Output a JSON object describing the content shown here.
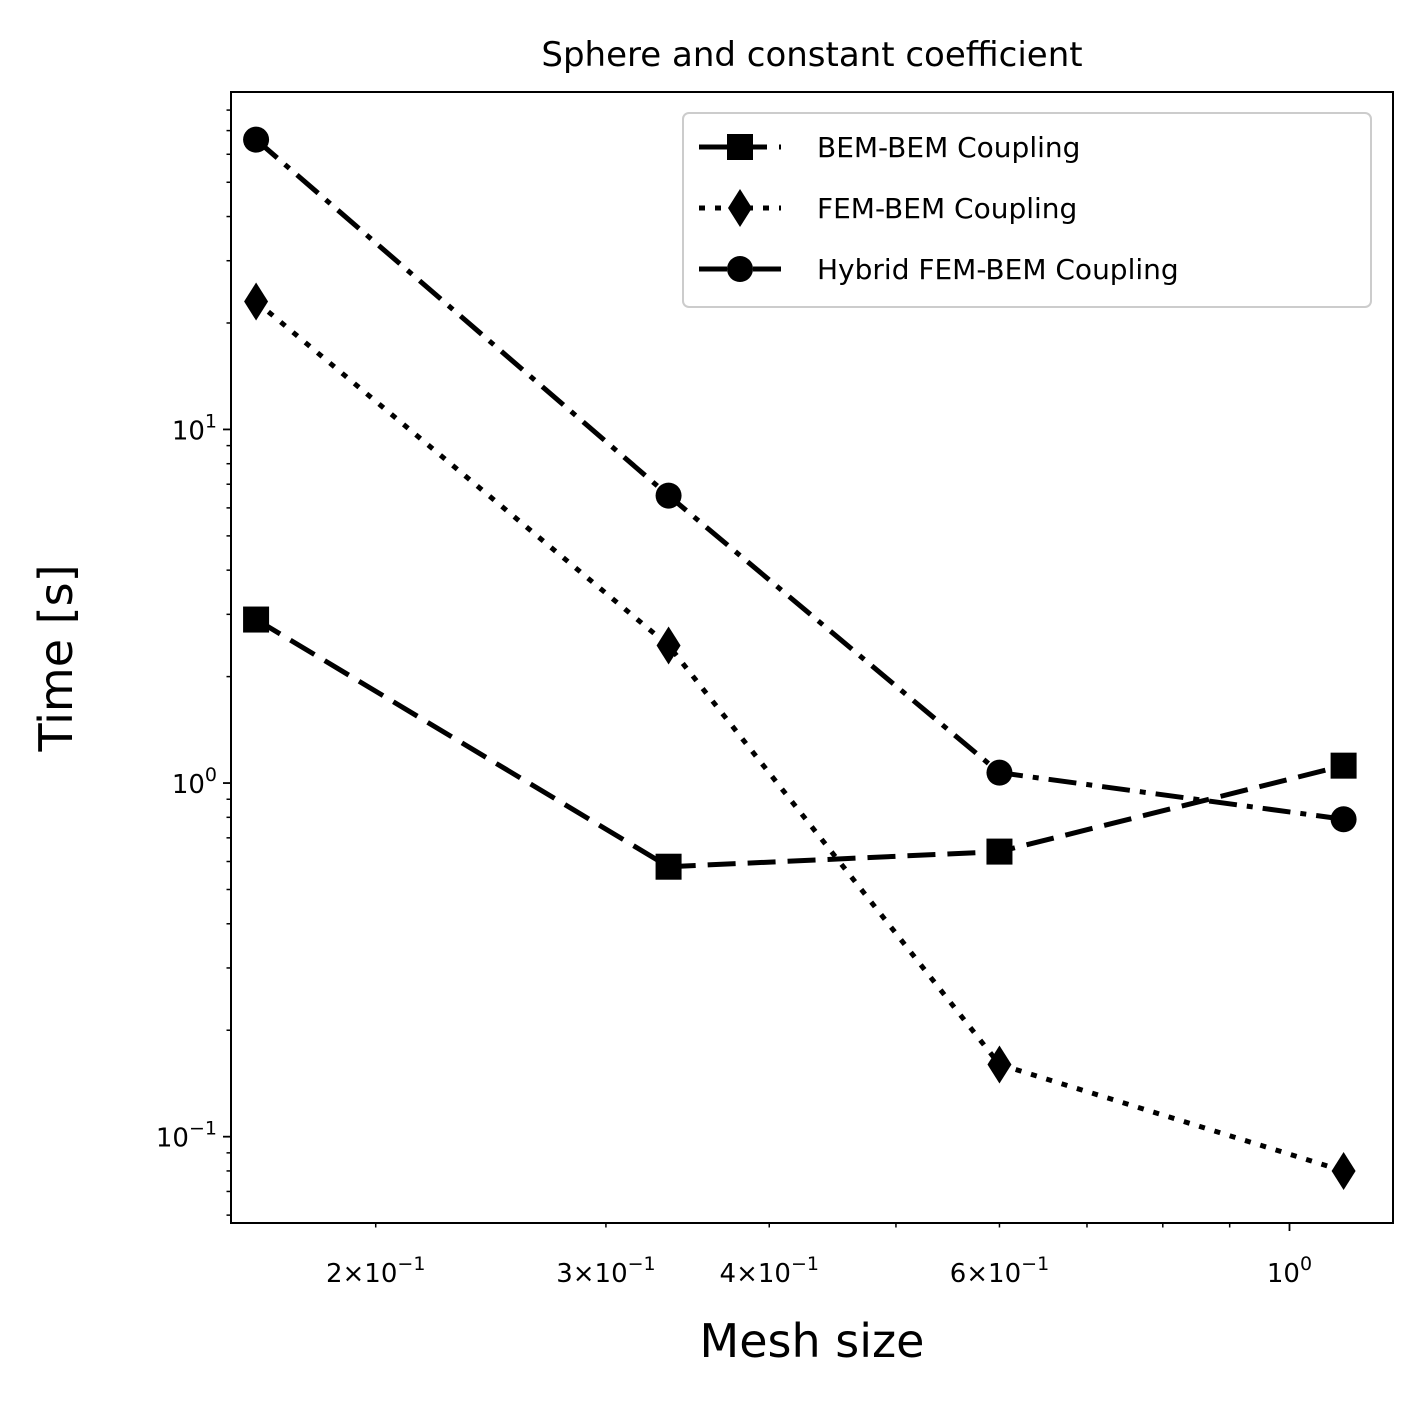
{
  "chart_data": {
    "type": "line",
    "title": "Sphere and constant coefficient",
    "xlabel": "Mesh size",
    "ylabel": "Time [s]",
    "xscale": "log",
    "yscale": "log",
    "xlim": [
      0.155,
      1.2
    ],
    "ylim": [
      0.057,
      90
    ],
    "legend": "top-right",
    "grid": false,
    "x": [
      0.162,
      0.335,
      0.6,
      1.1
    ],
    "series": [
      {
        "name": "BEM-BEM Coupling",
        "values": [
          2.9,
          0.58,
          0.64,
          1.12
        ],
        "marker": "square",
        "linestyle": "dashed",
        "color": "#000000"
      },
      {
        "name": "FEM-BEM Coupling",
        "values": [
          23,
          2.45,
          0.16,
          0.08
        ],
        "marker": "diamond",
        "linestyle": "dotted",
        "color": "#000000"
      },
      {
        "name": "Hybrid FEM-BEM Coupling",
        "values": [
          66,
          6.5,
          1.07,
          0.79
        ],
        "marker": "circle",
        "linestyle": "dashdot",
        "color": "#000000"
      }
    ],
    "x_ticks": [
      {
        "value": 0.2,
        "mant": "2",
        "exp": "−1"
      },
      {
        "value": 0.3,
        "mant": "3",
        "exp": "−1"
      },
      {
        "value": 0.4,
        "mant": "4",
        "exp": "−1"
      },
      {
        "value": 0.6,
        "mant": "6",
        "exp": "−1"
      },
      {
        "value": 1.0,
        "mant": "",
        "exp": "0"
      }
    ],
    "y_ticks": [
      {
        "value": 0.1,
        "exp": "−1"
      },
      {
        "value": 1,
        "exp": "0"
      },
      {
        "value": 10,
        "exp": "1"
      }
    ]
  }
}
